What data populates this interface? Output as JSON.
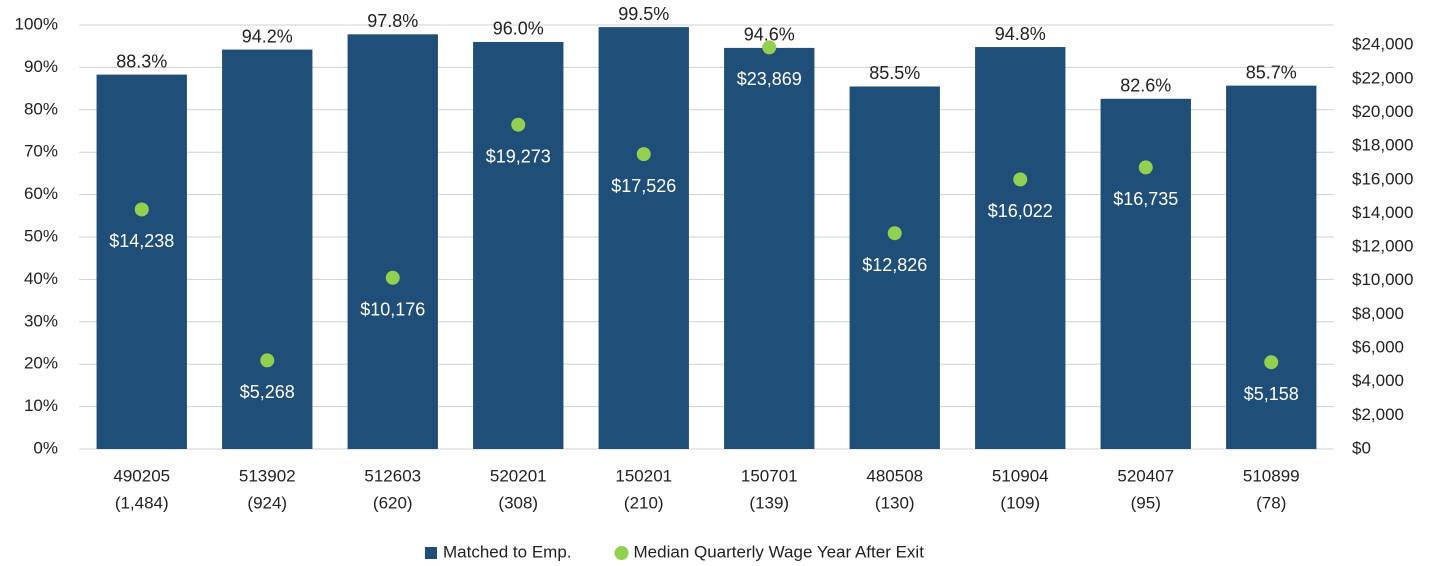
{
  "chart_data": {
    "type": "bar",
    "categories": [
      [
        "490205",
        "(1,484)"
      ],
      [
        "513902",
        "(924)"
      ],
      [
        "512603",
        "(620)"
      ],
      [
        "520201",
        "(308)"
      ],
      [
        "150201",
        "(210)"
      ],
      [
        "150701",
        "(139)"
      ],
      [
        "480508",
        "(130)"
      ],
      [
        "510904",
        "(109)"
      ],
      [
        "520407",
        "(95)"
      ],
      [
        "510899",
        "(78)"
      ]
    ],
    "series": [
      {
        "name": "Matched to Emp.",
        "type": "bar",
        "color": "#1f4e79",
        "values": [
          88.3,
          94.2,
          97.8,
          96.0,
          99.5,
          94.6,
          85.5,
          94.8,
          82.6,
          85.7
        ],
        "value_labels": [
          "88.3%",
          "94.2%",
          "97.8%",
          "96.0%",
          "99.5%",
          "94.6%",
          "85.5%",
          "94.8%",
          "82.6%",
          "85.7%"
        ]
      },
      {
        "name": "Median Quarterly Wage Year After Exit",
        "type": "scatter",
        "axis": "y2",
        "color": "#92d050",
        "values": [
          14238,
          5268,
          10176,
          19273,
          17526,
          23869,
          12826,
          16022,
          16735,
          5158
        ],
        "value_labels": [
          "$14,238",
          "$5,268",
          "$10,176",
          "$19,273",
          "$17,526",
          "$23,869",
          "$12,826",
          "$16,022",
          "$16,735",
          "$5,158"
        ]
      }
    ],
    "ylim": [
      0,
      100
    ],
    "yticks": [
      {
        "value": 0,
        "label": "0%"
      },
      {
        "value": 10,
        "label": "10%"
      },
      {
        "value": 20,
        "label": "20%"
      },
      {
        "value": 30,
        "label": "30%"
      },
      {
        "value": 40,
        "label": "40%"
      },
      {
        "value": 50,
        "label": "50%"
      },
      {
        "value": 60,
        "label": "60%"
      },
      {
        "value": 70,
        "label": "70%"
      },
      {
        "value": 80,
        "label": "80%"
      },
      {
        "value": 90,
        "label": "90%"
      },
      {
        "value": 100,
        "label": "100%"
      }
    ],
    "y2lim": [
      0,
      25200
    ],
    "y2ticks": [
      {
        "value": 0,
        "label": "$0"
      },
      {
        "value": 2000,
        "label": "$2,000"
      },
      {
        "value": 4000,
        "label": "$4,000"
      },
      {
        "value": 6000,
        "label": "$6,000"
      },
      {
        "value": 8000,
        "label": "$8,000"
      },
      {
        "value": 10000,
        "label": "$10,000"
      },
      {
        "value": 12000,
        "label": "$12,000"
      },
      {
        "value": 14000,
        "label": "$14,000"
      },
      {
        "value": 16000,
        "label": "$16,000"
      },
      {
        "value": 18000,
        "label": "$18,000"
      },
      {
        "value": 20000,
        "label": "$20,000"
      },
      {
        "value": 22000,
        "label": "$22,000"
      },
      {
        "value": 24000,
        "label": "$24,000"
      }
    ],
    "grid": true,
    "legend": "bottom"
  }
}
